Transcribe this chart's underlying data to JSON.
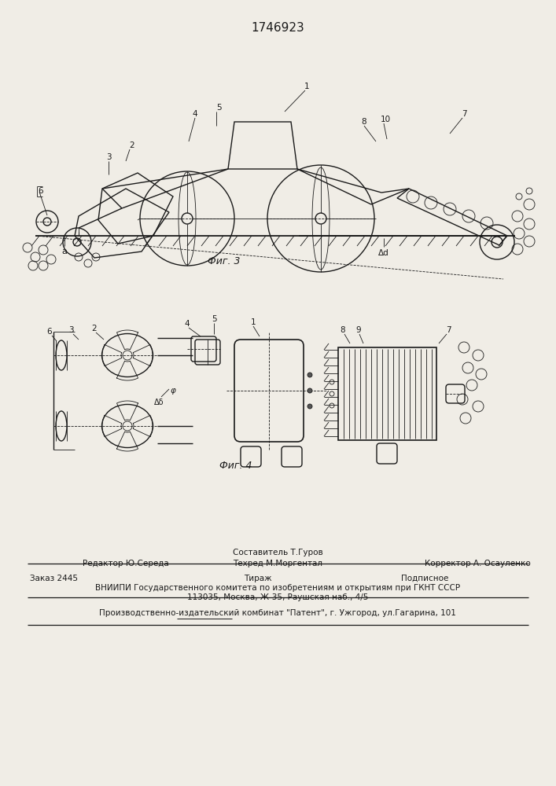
{
  "title": "1746923",
  "fig3_caption": "Фиг. 3",
  "fig4_caption": "Фиг. 4",
  "bg_color": "#f0ede6",
  "line_color": "#1a1a1a",
  "footer_line1_left": "Редактор Ю.Середа",
  "footer_line1_center_top": "Составитель Т.Гуров",
  "footer_line1_center_bot": "Техред М.Моргентал",
  "footer_line1_right": "Корректор А. Осауленко",
  "footer_line2_left": "Заказ 2445",
  "footer_line2_center": "Тираж",
  "footer_line2_right": "Подписное",
  "footer_line3": "ВНИИПИ Государственного комитета по изобретениям и открытиям при ГКНТ СССР",
  "footer_line4": "113035, Москва, Ж-35, Раушская наб., 4/5",
  "footer_line5": "Производственно-издательский комбинат \"Патент\", г. Ужгород, ул.Гагарина, 101"
}
